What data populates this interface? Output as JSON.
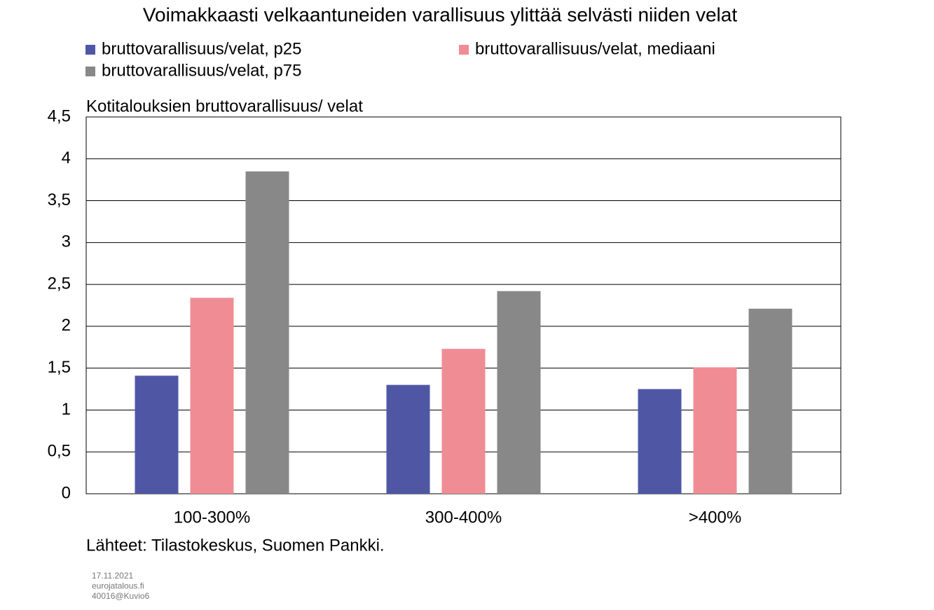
{
  "chart_data": {
    "type": "bar",
    "title": "Voimakkaasti velkaantuneiden varallisuus ylittää selvästi niiden velat",
    "y_label": "Kotitalouksien bruttovarallisuus/ velat",
    "categories": [
      "100-300%",
      "300-400%",
      ">400%"
    ],
    "series": [
      {
        "name": "bruttovarallisuus/velat, p25",
        "color": "#4f57a5",
        "values": [
          1.41,
          1.3,
          1.25
        ]
      },
      {
        "name": "bruttovarallisuus/velat, mediaani",
        "color": "#f08c94",
        "values": [
          2.34,
          1.73,
          1.51
        ]
      },
      {
        "name": "bruttovarallisuus/velat, p75",
        "color": "#888888",
        "values": [
          3.85,
          2.42,
          2.21
        ]
      }
    ],
    "ylim": [
      0,
      4.5
    ],
    "yticks": [
      0,
      {
        "value": 0.5,
        "label": "0,5"
      },
      1,
      {
        "value": 1.5,
        "label": "1,5"
      },
      2,
      {
        "value": 2.5,
        "label": "2,5"
      },
      3,
      {
        "value": 3.5,
        "label": "3,5"
      },
      4,
      {
        "value": 4.5,
        "label": "4,5"
      }
    ],
    "grid": true,
    "source": "Lähteet: Tilastokeskus, Suomen Pankki.",
    "notes": [
      "17.11.2021",
      "eurojatalous.fi",
      "40016@Kuvio6"
    ]
  }
}
